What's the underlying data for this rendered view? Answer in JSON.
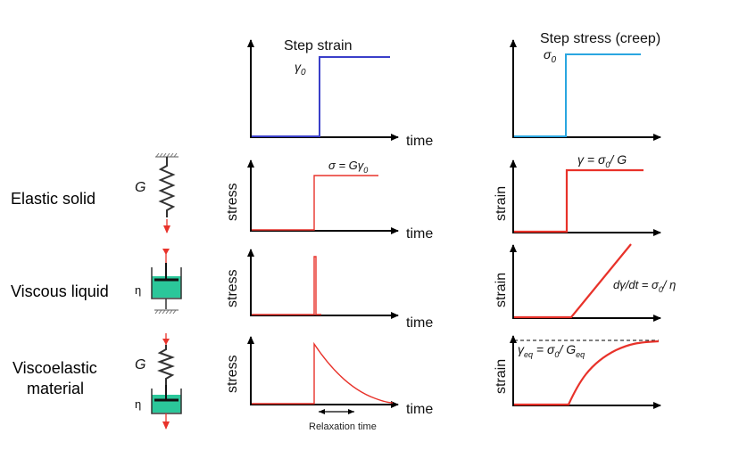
{
  "colors": {
    "axis": "#000000",
    "step_strain_line": "#3a3fc9",
    "step_stress_line": "#2aa6e0",
    "response_line": "#e8322a",
    "spring": "#333333",
    "dashpot_fill": "#2bc79a",
    "load_arrow": "#e8322a"
  },
  "columns": {
    "strain_input_title": "Step strain",
    "stress_input_title": "Step stress (creep)",
    "strain_input_level": "γ",
    "strain_input_level_sub": "0",
    "stress_input_level": "σ",
    "stress_input_level_sub": "0"
  },
  "axes": {
    "time": "time",
    "stress": "stress",
    "strain": "strain"
  },
  "rows": [
    {
      "label": "Elastic solid",
      "element_labels": {
        "spring": "G"
      },
      "stress_annotation": "σ = Gγ",
      "stress_annotation_sub": "0",
      "strain_annotation": "γ = σ",
      "strain_annotation_sub": "0",
      "strain_annotation_tail": "/ G"
    },
    {
      "label": "Viscous liquid",
      "element_labels": {
        "dashpot": "η"
      },
      "strain_annotation": "dγ/dt = σ",
      "strain_annotation_sub": "0",
      "strain_annotation_tail": "/ η"
    },
    {
      "label_line1": "Viscoelastic",
      "label_line2": "material",
      "element_labels": {
        "spring": "G",
        "dashpot": "η"
      },
      "strain_annotation": "γ",
      "strain_annotation_sub": "eq",
      "strain_annotation_mid": " = σ",
      "strain_annotation_sub2": "0",
      "strain_annotation_tail": "/ G",
      "strain_annotation_sub3": "eq",
      "relaxation_label": "Relaxation time"
    }
  ]
}
